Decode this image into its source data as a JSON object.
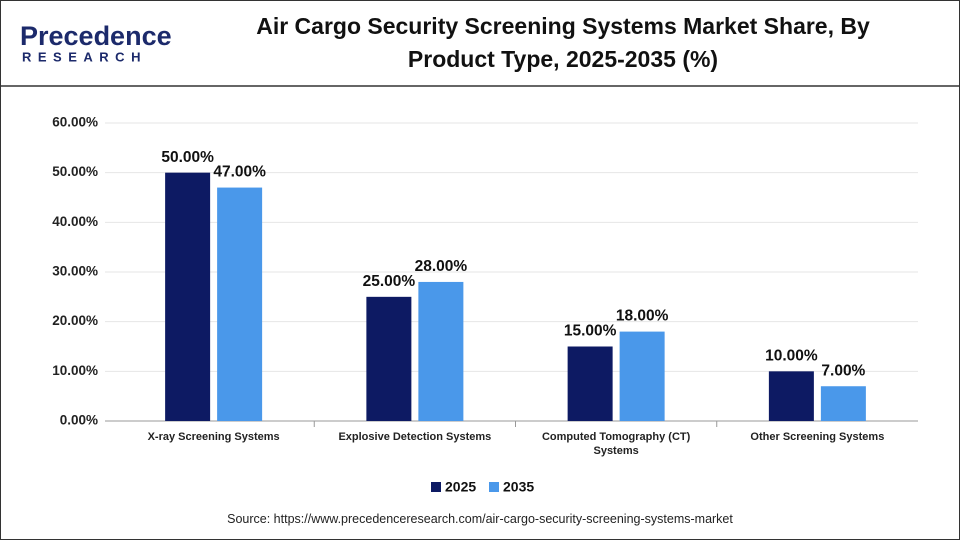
{
  "logo": {
    "name": "Precedence",
    "sub": "RESEARCH"
  },
  "chart_data": {
    "type": "bar",
    "title": "Air Cargo Security Screening Systems Market Share, By Product Type, 2025-2035 (%)",
    "categories": [
      "X-ray Screening Systems",
      "Explosive Detection Systems",
      "Computed Tomography (CT) Systems",
      "Other Screening Systems"
    ],
    "series": [
      {
        "name": "2025",
        "color": "#0d1a63",
        "values": [
          50,
          25,
          15,
          10
        ],
        "value_labels": [
          "50.00%",
          "25.00%",
          "15.00%",
          "10.00%"
        ]
      },
      {
        "name": "2035",
        "color": "#4a98ea",
        "values": [
          47,
          28,
          18,
          7
        ],
        "value_labels": [
          "47.00%",
          "28.00%",
          "18.00%",
          "7.00%"
        ]
      }
    ],
    "ylim": [
      0,
      60
    ],
    "yticks": [
      {
        "value": 0,
        "label": "0.00%"
      },
      {
        "value": 10,
        "label": "10.00%"
      },
      {
        "value": 20,
        "label": "20.00%"
      },
      {
        "value": 30,
        "label": "30.00%"
      },
      {
        "value": 40,
        "label": "40.00%"
      },
      {
        "value": 50,
        "label": "50.00%"
      },
      {
        "value": 60,
        "label": "60.00%"
      }
    ],
    "grid": true,
    "legend": "bottom",
    "source": "Source: https://www.precedenceresearch.com/air-cargo-security-screening-systems-market"
  }
}
